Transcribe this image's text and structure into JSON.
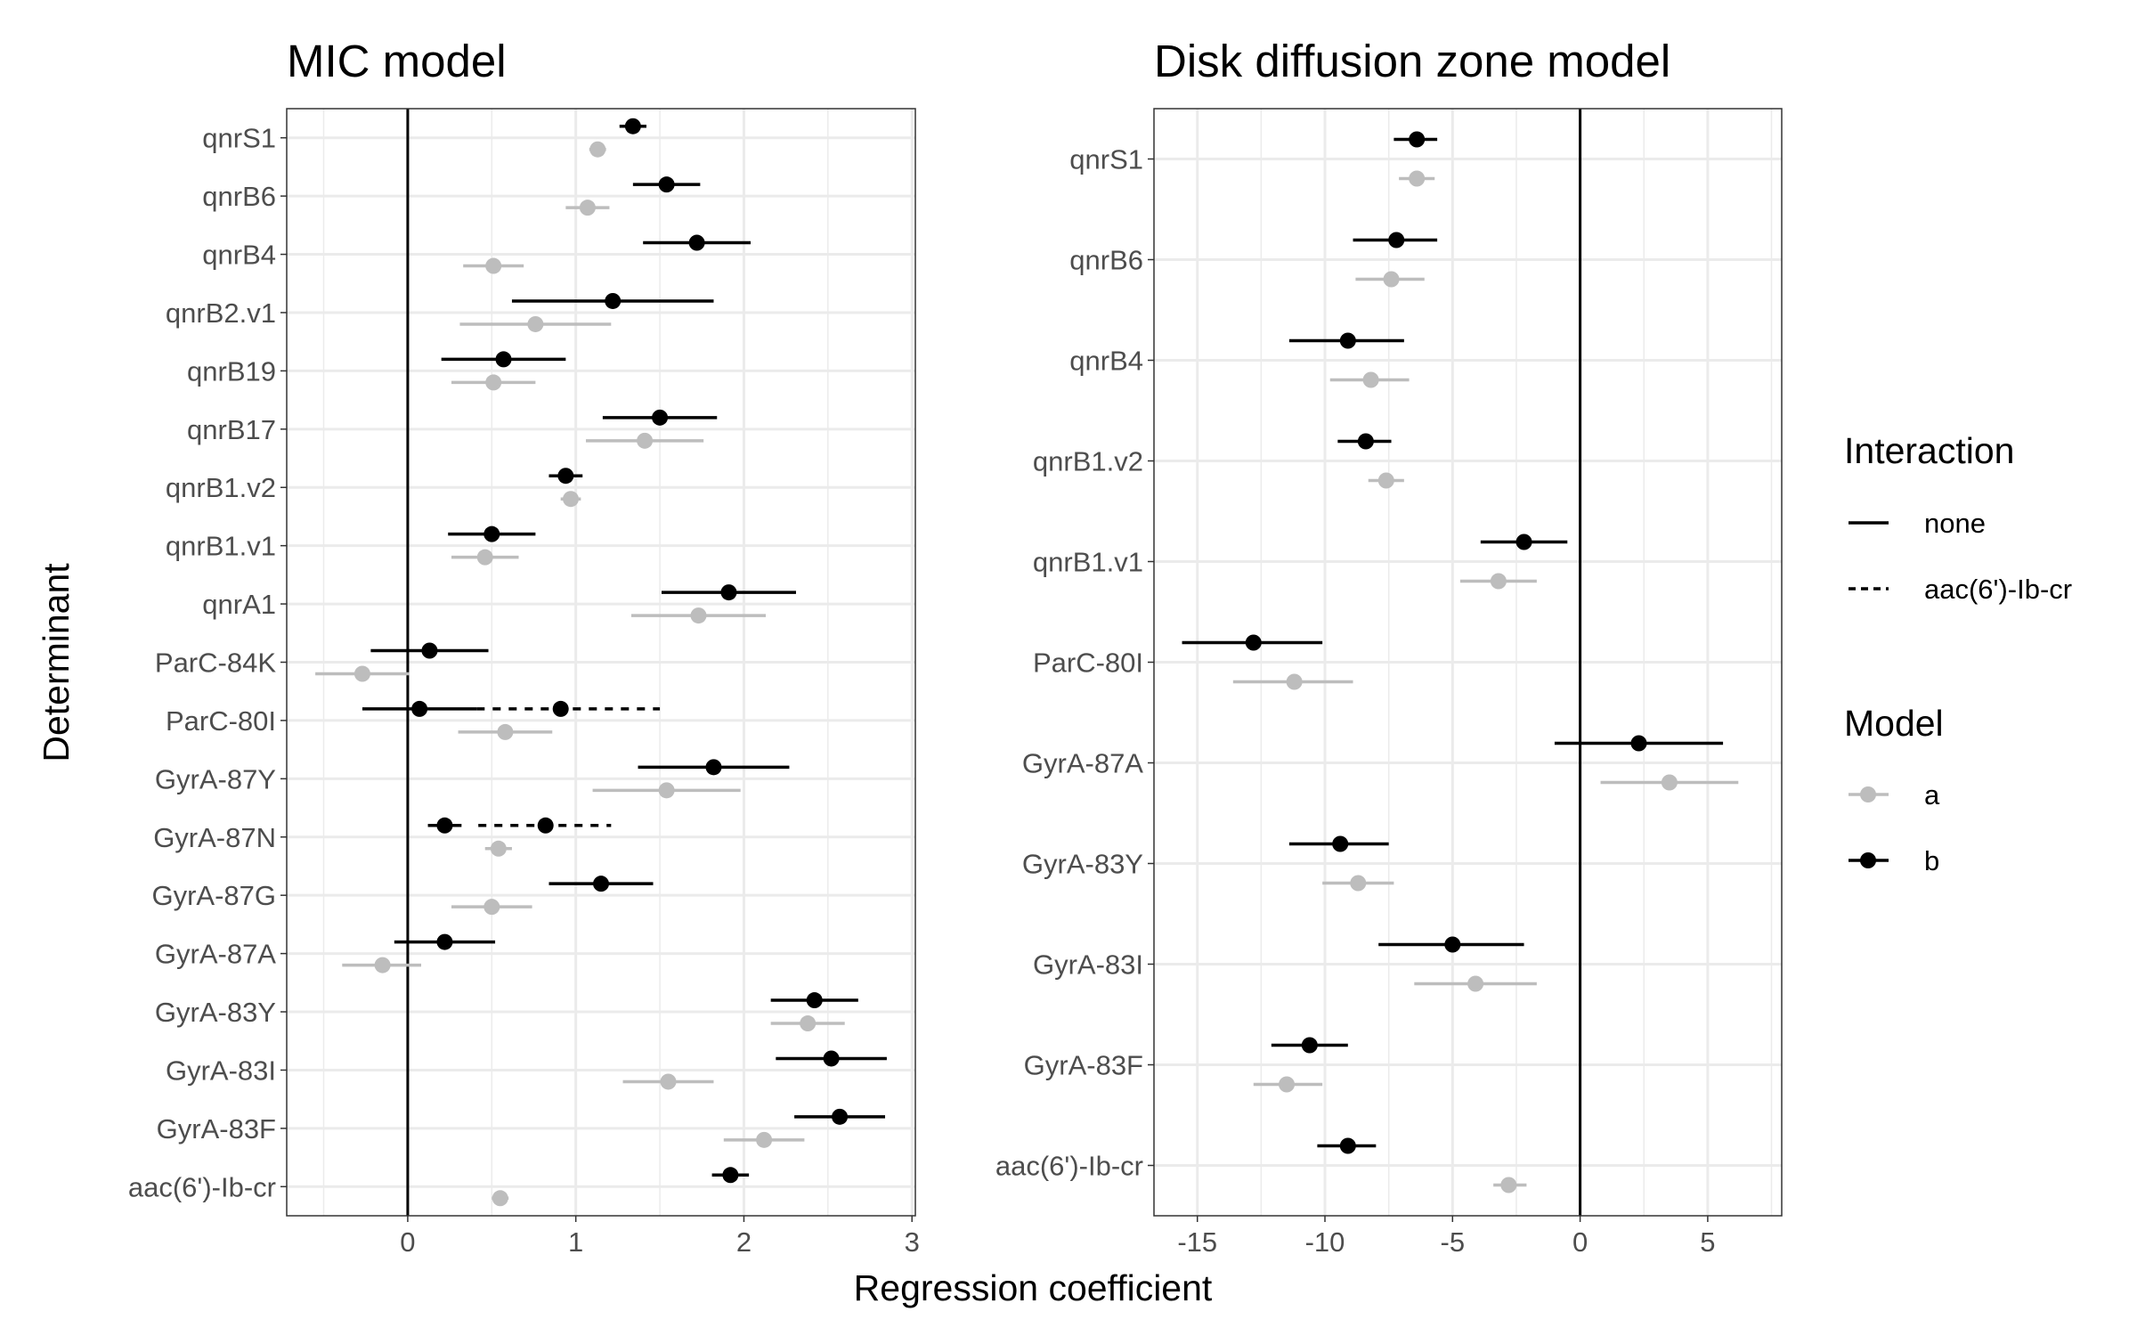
{
  "xlabel": "Regression coefficient",
  "ylabel": "Determinant",
  "legend": {
    "interaction_title": "Interaction",
    "interaction_items": [
      {
        "label": "none",
        "linetype": "solid"
      },
      {
        "label": "aac(6')-Ib-cr",
        "linetype": "dashed"
      }
    ],
    "model_title": "Model",
    "model_items": [
      {
        "label": "a",
        "color": "#bdbdbd"
      },
      {
        "label": "b",
        "color": "#000000"
      }
    ]
  },
  "colors": {
    "a": "#bdbdbd",
    "b": "#000000",
    "grid": "#ebebeb"
  },
  "chart_data": [
    {
      "type": "scatter",
      "title": "MIC model",
      "xlim": [
        -0.72,
        3.02
      ],
      "xticks": [
        0,
        1,
        2,
        3
      ],
      "categories": [
        "aac(6')-Ib-cr",
        "GyrA-83F",
        "GyrA-83I",
        "GyrA-83Y",
        "GyrA-87A",
        "GyrA-87G",
        "GyrA-87N",
        "GyrA-87Y",
        "ParC-80I",
        "ParC-84K",
        "qnrA1",
        "qnrB1.v1",
        "qnrB1.v2",
        "qnrB17",
        "qnrB19",
        "qnrB2.v1",
        "qnrB4",
        "qnrB6",
        "qnrS1"
      ],
      "series": [
        {
          "name": "a",
          "points": [
            {
              "cat": "aac(6')-Ib-cr",
              "est": 0.55,
              "lo": 0.5,
              "hi": 0.6,
              "interaction": "none"
            },
            {
              "cat": "GyrA-83F",
              "est": 2.12,
              "lo": 1.88,
              "hi": 2.36,
              "interaction": "none"
            },
            {
              "cat": "GyrA-83I",
              "est": 1.55,
              "lo": 1.28,
              "hi": 1.82,
              "interaction": "none"
            },
            {
              "cat": "GyrA-83Y",
              "est": 2.38,
              "lo": 2.16,
              "hi": 2.6,
              "interaction": "none"
            },
            {
              "cat": "GyrA-87A",
              "est": -0.15,
              "lo": -0.39,
              "hi": 0.08,
              "interaction": "none"
            },
            {
              "cat": "GyrA-87G",
              "est": 0.5,
              "lo": 0.26,
              "hi": 0.74,
              "interaction": "none"
            },
            {
              "cat": "GyrA-87N",
              "est": 0.54,
              "lo": 0.46,
              "hi": 0.62,
              "interaction": "none"
            },
            {
              "cat": "GyrA-87Y",
              "est": 1.54,
              "lo": 1.1,
              "hi": 1.98,
              "interaction": "none"
            },
            {
              "cat": "ParC-80I",
              "est": 0.58,
              "lo": 0.3,
              "hi": 0.86,
              "interaction": "none"
            },
            {
              "cat": "ParC-84K",
              "est": -0.27,
              "lo": -0.55,
              "hi": 0.01,
              "interaction": "none"
            },
            {
              "cat": "qnrA1",
              "est": 1.73,
              "lo": 1.33,
              "hi": 2.13,
              "interaction": "none"
            },
            {
              "cat": "qnrB1.v1",
              "est": 0.46,
              "lo": 0.26,
              "hi": 0.66,
              "interaction": "none"
            },
            {
              "cat": "qnrB1.v2",
              "est": 0.97,
              "lo": 0.91,
              "hi": 1.03,
              "interaction": "none"
            },
            {
              "cat": "qnrB17",
              "est": 1.41,
              "lo": 1.06,
              "hi": 1.76,
              "interaction": "none"
            },
            {
              "cat": "qnrB19",
              "est": 0.51,
              "lo": 0.26,
              "hi": 0.76,
              "interaction": "none"
            },
            {
              "cat": "qnrB2.v1",
              "est": 0.76,
              "lo": 0.31,
              "hi": 1.21,
              "interaction": "none"
            },
            {
              "cat": "qnrB4",
              "est": 0.51,
              "lo": 0.33,
              "hi": 0.69,
              "interaction": "none"
            },
            {
              "cat": "qnrB6",
              "est": 1.07,
              "lo": 0.94,
              "hi": 1.2,
              "interaction": "none"
            },
            {
              "cat": "qnrS1",
              "est": 1.13,
              "lo": 1.08,
              "hi": 1.18,
              "interaction": "none"
            }
          ]
        },
        {
          "name": "b",
          "points": [
            {
              "cat": "aac(6')-Ib-cr",
              "est": 1.92,
              "lo": 1.81,
              "hi": 2.03,
              "interaction": "none"
            },
            {
              "cat": "GyrA-83F",
              "est": 2.57,
              "lo": 2.3,
              "hi": 2.84,
              "interaction": "none"
            },
            {
              "cat": "GyrA-83I",
              "est": 2.52,
              "lo": 2.19,
              "hi": 2.85,
              "interaction": "none"
            },
            {
              "cat": "GyrA-83Y",
              "est": 2.42,
              "lo": 2.16,
              "hi": 2.68,
              "interaction": "none"
            },
            {
              "cat": "GyrA-87A",
              "est": 0.22,
              "lo": -0.08,
              "hi": 0.52,
              "interaction": "none"
            },
            {
              "cat": "GyrA-87G",
              "est": 1.15,
              "lo": 0.84,
              "hi": 1.46,
              "interaction": "none"
            },
            {
              "cat": "GyrA-87N",
              "est": 0.22,
              "lo": 0.12,
              "hi": 0.32,
              "interaction": "none"
            },
            {
              "cat": "GyrA-87N",
              "est": 0.82,
              "lo": 0.42,
              "hi": 1.21,
              "interaction": "aac(6')-Ib-cr"
            },
            {
              "cat": "GyrA-87Y",
              "est": 1.82,
              "lo": 1.37,
              "hi": 2.27,
              "interaction": "none"
            },
            {
              "cat": "ParC-80I",
              "est": 0.07,
              "lo": -0.27,
              "hi": 0.41,
              "interaction": "none"
            },
            {
              "cat": "ParC-80I",
              "est": 0.91,
              "lo": 0.41,
              "hi": 1.5,
              "interaction": "aac(6')-Ib-cr"
            },
            {
              "cat": "ParC-84K",
              "est": 0.13,
              "lo": -0.22,
              "hi": 0.48,
              "interaction": "none"
            },
            {
              "cat": "qnrA1",
              "est": 1.91,
              "lo": 1.51,
              "hi": 2.31,
              "interaction": "none"
            },
            {
              "cat": "qnrB1.v1",
              "est": 0.5,
              "lo": 0.24,
              "hi": 0.76,
              "interaction": "none"
            },
            {
              "cat": "qnrB1.v2",
              "est": 0.94,
              "lo": 0.84,
              "hi": 1.04,
              "interaction": "none"
            },
            {
              "cat": "qnrB17",
              "est": 1.5,
              "lo": 1.16,
              "hi": 1.84,
              "interaction": "none"
            },
            {
              "cat": "qnrB19",
              "est": 0.57,
              "lo": 0.2,
              "hi": 0.94,
              "interaction": "none"
            },
            {
              "cat": "qnrB2.v1",
              "est": 1.22,
              "lo": 0.62,
              "hi": 1.82,
              "interaction": "none"
            },
            {
              "cat": "qnrB4",
              "est": 1.72,
              "lo": 1.4,
              "hi": 2.04,
              "interaction": "none"
            },
            {
              "cat": "qnrB6",
              "est": 1.54,
              "lo": 1.34,
              "hi": 1.74,
              "interaction": "none"
            },
            {
              "cat": "qnrS1",
              "est": 1.34,
              "lo": 1.26,
              "hi": 1.42,
              "interaction": "none"
            }
          ]
        }
      ],
      "vline": 0,
      "grid": true
    },
    {
      "type": "scatter",
      "title": "Disk diffusion zone model",
      "xlim": [
        -16.7,
        7.9
      ],
      "xticks": [
        -15,
        -10,
        -5,
        0,
        5
      ],
      "xtick_labels": [
        "-15",
        "-10",
        "-5",
        "0",
        "5"
      ],
      "categories": [
        "aac(6')-Ib-cr",
        "GyrA-83F",
        "GyrA-83I",
        "GyrA-83Y",
        "GyrA-87A",
        "ParC-80I",
        "qnrB1.v1",
        "qnrB1.v2",
        "qnrB4",
        "qnrB6",
        "qnrS1"
      ],
      "series": [
        {
          "name": "a",
          "points": [
            {
              "cat": "aac(6')-Ib-cr",
              "est": -2.8,
              "lo": -3.4,
              "hi": -2.1,
              "interaction": "none"
            },
            {
              "cat": "GyrA-83F",
              "est": -11.5,
              "lo": -12.8,
              "hi": -10.1,
              "interaction": "none"
            },
            {
              "cat": "GyrA-83I",
              "est": -4.1,
              "lo": -6.5,
              "hi": -1.7,
              "interaction": "none"
            },
            {
              "cat": "GyrA-83Y",
              "est": -8.7,
              "lo": -10.1,
              "hi": -7.3,
              "interaction": "none"
            },
            {
              "cat": "GyrA-87A",
              "est": 3.5,
              "lo": 0.8,
              "hi": 6.2,
              "interaction": "none"
            },
            {
              "cat": "ParC-80I",
              "est": -11.2,
              "lo": -13.6,
              "hi": -8.9,
              "interaction": "none"
            },
            {
              "cat": "qnrB1.v1",
              "est": -3.2,
              "lo": -4.7,
              "hi": -1.7,
              "interaction": "none"
            },
            {
              "cat": "qnrB1.v2",
              "est": -7.6,
              "lo": -8.3,
              "hi": -6.9,
              "interaction": "none"
            },
            {
              "cat": "qnrB4",
              "est": -8.2,
              "lo": -9.8,
              "hi": -6.7,
              "interaction": "none"
            },
            {
              "cat": "qnrB6",
              "est": -7.4,
              "lo": -8.8,
              "hi": -6.1,
              "interaction": "none"
            },
            {
              "cat": "qnrS1",
              "est": -6.4,
              "lo": -7.1,
              "hi": -5.7,
              "interaction": "none"
            }
          ]
        },
        {
          "name": "b",
          "points": [
            {
              "cat": "aac(6')-Ib-cr",
              "est": -9.1,
              "lo": -10.3,
              "hi": -8.0,
              "interaction": "none"
            },
            {
              "cat": "GyrA-83F",
              "est": -10.6,
              "lo": -12.1,
              "hi": -9.1,
              "interaction": "none"
            },
            {
              "cat": "GyrA-83I",
              "est": -5.0,
              "lo": -7.9,
              "hi": -2.2,
              "interaction": "none"
            },
            {
              "cat": "GyrA-83Y",
              "est": -9.4,
              "lo": -11.4,
              "hi": -7.5,
              "interaction": "none"
            },
            {
              "cat": "GyrA-87A",
              "est": 2.3,
              "lo": -1.0,
              "hi": 5.6,
              "interaction": "none"
            },
            {
              "cat": "ParC-80I",
              "est": -12.8,
              "lo": -15.6,
              "hi": -10.1,
              "interaction": "none"
            },
            {
              "cat": "qnrB1.v1",
              "est": -2.2,
              "lo": -3.9,
              "hi": -0.5,
              "interaction": "none"
            },
            {
              "cat": "qnrB1.v2",
              "est": -8.4,
              "lo": -9.5,
              "hi": -7.4,
              "interaction": "none"
            },
            {
              "cat": "qnrB4",
              "est": -9.1,
              "lo": -11.4,
              "hi": -6.9,
              "interaction": "none"
            },
            {
              "cat": "qnrB6",
              "est": -7.2,
              "lo": -8.9,
              "hi": -5.6,
              "interaction": "none"
            },
            {
              "cat": "qnrS1",
              "est": -6.4,
              "lo": -7.3,
              "hi": -5.6,
              "interaction": "none"
            }
          ]
        }
      ],
      "vline": 0,
      "grid": true
    }
  ]
}
